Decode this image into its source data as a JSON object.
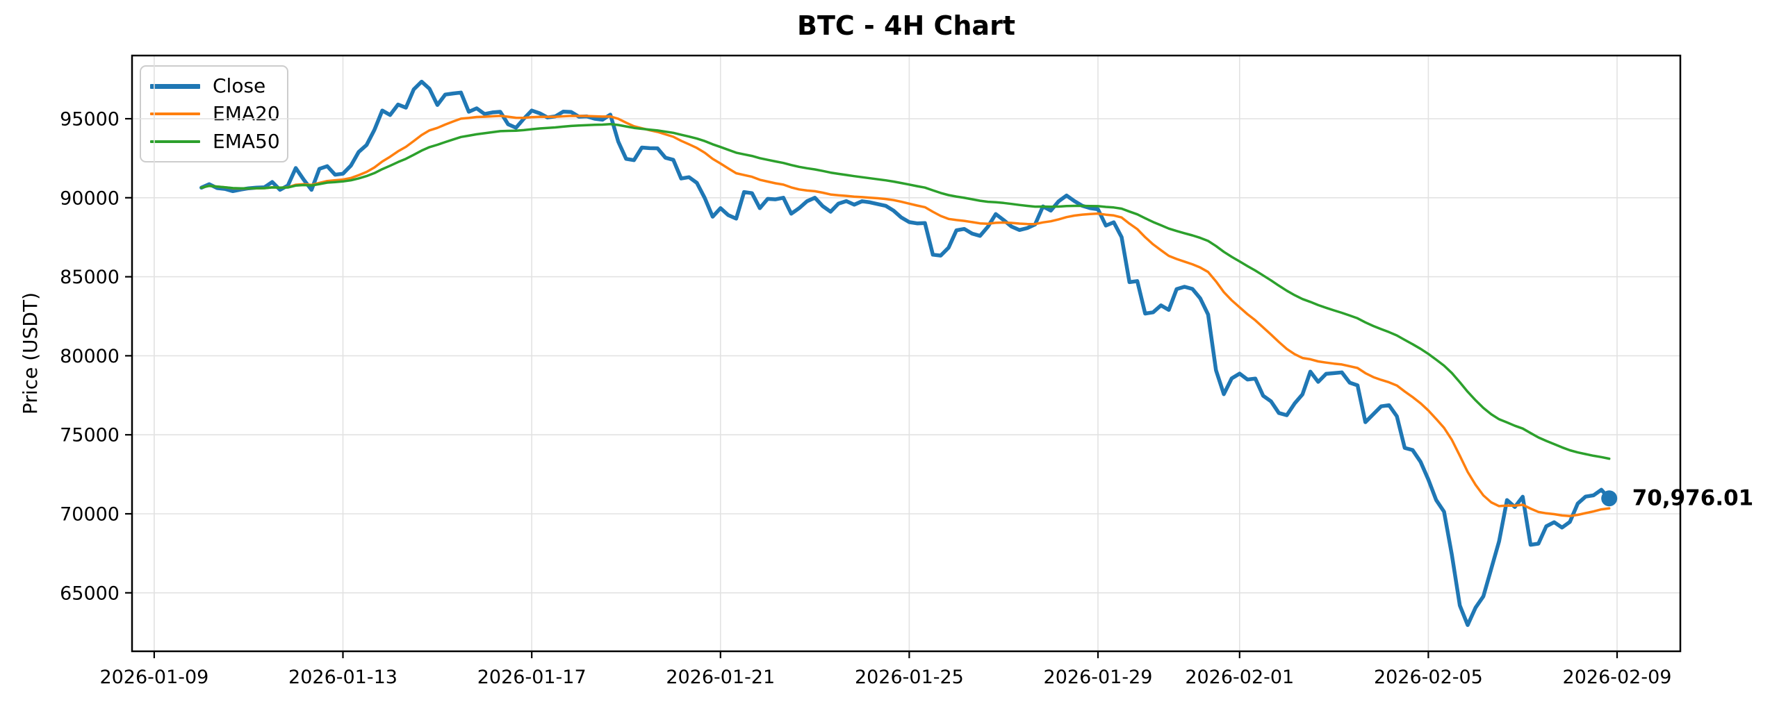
{
  "chart_data": {
    "type": "line",
    "title": "BTC - 4H Chart",
    "ylabel": "Price (USDT)",
    "xlabel": "",
    "grid": true,
    "legend_position": "upper-left",
    "series_legend": [
      {
        "label": "Close",
        "color": "#1f77b4"
      },
      {
        "label": "EMA20",
        "color": "#ff7f0e"
      },
      {
        "label": "EMA50",
        "color": "#2ca02c"
      }
    ],
    "x_start": "2026-01-10 00:00",
    "interval_hours": 4,
    "x_start_day": 1.0,
    "x_step_day": 0.1666667,
    "xlim_days": [
      -0.47,
      32.34
    ],
    "ylim": [
      61300,
      99000
    ],
    "y_ticks": [
      {
        "value": 65000,
        "label": "65000"
      },
      {
        "value": 70000,
        "label": "70000"
      },
      {
        "value": 75000,
        "label": "75000"
      },
      {
        "value": 80000,
        "label": "80000"
      },
      {
        "value": 85000,
        "label": "85000"
      },
      {
        "value": 90000,
        "label": "90000"
      },
      {
        "value": 95000,
        "label": "95000"
      }
    ],
    "x_ticks": [
      {
        "day": 0,
        "label": "2026-01-09"
      },
      {
        "day": 4,
        "label": "2026-01-13"
      },
      {
        "day": 8,
        "label": "2026-01-17"
      },
      {
        "day": 12,
        "label": "2026-01-21"
      },
      {
        "day": 16,
        "label": "2026-01-25"
      },
      {
        "day": 20,
        "label": "2026-01-29"
      },
      {
        "day": 23,
        "label": "2026-02-01"
      },
      {
        "day": 27,
        "label": "2026-02-05"
      },
      {
        "day": 31,
        "label": "2026-02-09"
      }
    ],
    "close": [
      90640,
      90860,
      90610,
      90560,
      90420,
      90520,
      90600,
      90640,
      90660,
      91000,
      90500,
      90780,
      91880,
      91150,
      90500,
      91830,
      92000,
      91460,
      91520,
      92030,
      92900,
      93340,
      94300,
      95520,
      95240,
      95900,
      95700,
      96860,
      97350,
      96900,
      95870,
      96530,
      96600,
      96660,
      95440,
      95660,
      95300,
      95400,
      95440,
      94650,
      94430,
      95000,
      95520,
      95350,
      95080,
      95150,
      95450,
      95430,
      95130,
      95150,
      95000,
      94940,
      95260,
      93550,
      92460,
      92380,
      93180,
      93140,
      93130,
      92530,
      92400,
      91220,
      91300,
      90940,
      89980,
      88800,
      89340,
      88900,
      88680,
      90360,
      90290,
      89340,
      89930,
      89900,
      90000,
      88990,
      89340,
      89780,
      90000,
      89470,
      89120,
      89630,
      89790,
      89560,
      89780,
      89710,
      89600,
      89490,
      89190,
      88750,
      88460,
      88380,
      88400,
      86400,
      86340,
      86840,
      87940,
      88030,
      87730,
      87590,
      88170,
      88970,
      88590,
      88180,
      87960,
      88080,
      88310,
      89450,
      89190,
      89780,
      90140,
      89790,
      89490,
      89340,
      89270,
      88240,
      88450,
      87510,
      84660,
      84730,
      82670,
      82750,
      83190,
      82900,
      84220,
      84370,
      84230,
      83630,
      82610,
      79090,
      77570,
      78570,
      78870,
      78500,
      78560,
      77470,
      77120,
      76380,
      76240,
      76980,
      77560,
      79000,
      78350,
      78860,
      78900,
      78950,
      78300,
      78130,
      75800,
      76300,
      76800,
      76870,
      76170,
      74170,
      74040,
      73300,
      72170,
      70870,
      70130,
      67390,
      64200,
      62960,
      64060,
      64780,
      66520,
      68260,
      70870,
      70430,
      71080,
      68040,
      68110,
      69210,
      69470,
      69130,
      69490,
      70650,
      71090,
      71170,
      71520,
      70976.01
    ],
    "emas": [
      {
        "label": "EMA20",
        "period": 20,
        "color": "#ff7f0e",
        "derived_from": "close"
      },
      {
        "label": "EMA50",
        "period": 50,
        "color": "#2ca02c",
        "derived_from": "close"
      }
    ],
    "last_price": 70976.01,
    "last_price_label": "70,976.01",
    "colors": {
      "close": "#1f77b4",
      "ema20": "#ff7f0e",
      "ema50": "#2ca02c",
      "grid": "#e2e2e2",
      "spine": "#000000",
      "text": "#000000"
    }
  }
}
